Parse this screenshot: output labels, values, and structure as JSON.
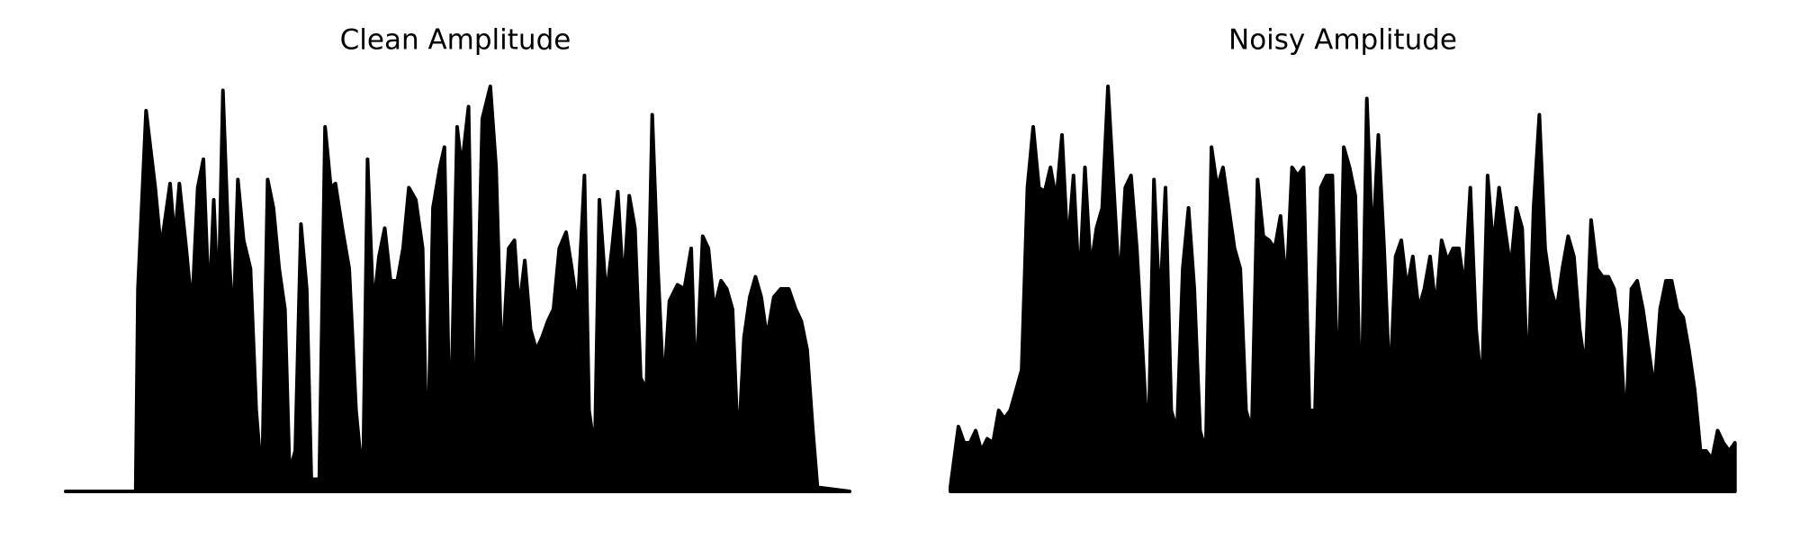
{
  "chart_data": [
    {
      "type": "area",
      "title": "Clean Amplitude",
      "color": "#000000",
      "xlim": [
        0,
        683
      ],
      "ylim": [
        0,
        100
      ],
      "x": [
        0,
        61,
        63,
        70,
        78,
        83,
        91,
        95,
        99,
        105,
        110,
        115,
        120,
        125,
        129,
        133,
        137,
        142,
        146,
        150,
        155,
        161,
        166,
        171,
        176,
        181,
        186,
        191,
        195,
        200,
        205,
        210,
        214,
        221,
        226,
        231,
        235,
        241,
        247,
        253,
        259,
        263,
        268,
        273,
        278,
        283,
        289,
        294,
        299,
        305,
        311,
        315,
        320,
        326,
        330,
        335,
        341,
        345,
        351,
        356,
        363,
        370,
        375,
        380,
        386,
        391,
        395,
        400,
        405,
        410,
        415,
        420,
        425,
        430,
        436,
        441,
        446,
        452,
        456,
        461,
        465,
        471,
        476,
        481,
        486,
        491,
        496,
        501,
        506,
        511,
        516,
        521,
        526,
        533,
        539,
        545,
        549,
        555,
        560,
        565,
        571,
        576,
        581,
        586,
        591,
        596,
        601,
        606,
        611,
        617,
        623,
        630,
        636,
        641,
        646,
        651,
        655,
        683
      ],
      "values": [
        0,
        0,
        50,
        94,
        75,
        60,
        76,
        62,
        76,
        60,
        45,
        75,
        82,
        45,
        72,
        45,
        99,
        60,
        40,
        77,
        62,
        55,
        20,
        2,
        77,
        70,
        55,
        45,
        5,
        10,
        66,
        50,
        3,
        3,
        90,
        75,
        76,
        65,
        55,
        20,
        2,
        82,
        45,
        58,
        65,
        52,
        52,
        60,
        75,
        72,
        60,
        3,
        70,
        80,
        85,
        10,
        90,
        80,
        95,
        10,
        92,
        100,
        80,
        30,
        60,
        62,
        45,
        57,
        40,
        35,
        38,
        42,
        45,
        60,
        64,
        55,
        45,
        78,
        20,
        10,
        72,
        48,
        60,
        74,
        50,
        73,
        65,
        28,
        25,
        93,
        55,
        25,
        47,
        51,
        50,
        60,
        25,
        63,
        60,
        45,
        52,
        50,
        45,
        10,
        38,
        48,
        53,
        48,
        38,
        48,
        50,
        50,
        45,
        42,
        35,
        15,
        1,
        0
      ]
    },
    {
      "type": "area",
      "title": "Noisy Amplitude",
      "color": "#000000",
      "xlim": [
        0,
        683
      ],
      "ylim": [
        0,
        100
      ],
      "x": [
        0,
        7,
        12,
        17,
        22,
        27,
        32,
        37,
        42,
        47,
        52,
        57,
        62,
        67,
        72,
        77,
        82,
        87,
        92,
        97,
        102,
        107,
        112,
        117,
        122,
        127,
        132,
        137,
        142,
        147,
        152,
        157,
        162,
        167,
        172,
        177,
        182,
        187,
        192,
        197,
        202,
        207,
        212,
        217,
        222,
        227,
        232,
        237,
        242,
        247,
        252,
        257,
        262,
        267,
        272,
        277,
        282,
        287,
        292,
        297,
        302,
        307,
        312,
        317,
        322,
        327,
        332,
        337,
        342,
        347,
        352,
        357,
        362,
        367,
        372,
        377,
        382,
        387,
        392,
        397,
        402,
        407,
        412,
        417,
        422,
        427,
        432,
        437,
        442,
        447,
        452,
        457,
        462,
        467,
        472,
        477,
        482,
        487,
        492,
        497,
        502,
        507,
        512,
        517,
        522,
        527,
        532,
        537,
        542,
        547,
        552,
        557,
        562,
        567,
        572,
        577,
        582,
        587,
        592,
        597,
        602,
        607,
        612,
        617,
        622,
        627,
        632,
        637,
        642,
        647,
        652,
        657,
        662,
        667,
        672,
        677,
        682
      ],
      "values": [
        1,
        16,
        12,
        12,
        15,
        10,
        13,
        12,
        20,
        18,
        20,
        25,
        30,
        75,
        90,
        75,
        74,
        80,
        72,
        88,
        60,
        78,
        50,
        80,
        55,
        65,
        70,
        100,
        75,
        50,
        75,
        78,
        60,
        35,
        10,
        77,
        45,
        75,
        20,
        15,
        55,
        70,
        50,
        15,
        10,
        85,
        75,
        80,
        70,
        60,
        55,
        20,
        15,
        77,
        63,
        62,
        60,
        68,
        50,
        80,
        78,
        80,
        20,
        20,
        75,
        78,
        78,
        20,
        85,
        80,
        73,
        15,
        97,
        60,
        88,
        60,
        25,
        58,
        62,
        50,
        58,
        45,
        50,
        58,
        45,
        62,
        57,
        60,
        60,
        50,
        75,
        40,
        25,
        78,
        60,
        75,
        65,
        55,
        70,
        65,
        25,
        70,
        93,
        60,
        50,
        45,
        55,
        63,
        58,
        40,
        30,
        67,
        55,
        53,
        53,
        50,
        40,
        15,
        50,
        52,
        45,
        35,
        25,
        45,
        52,
        52,
        45,
        43,
        35,
        25,
        10,
        10,
        8,
        15,
        12,
        10,
        12
      ]
    }
  ]
}
